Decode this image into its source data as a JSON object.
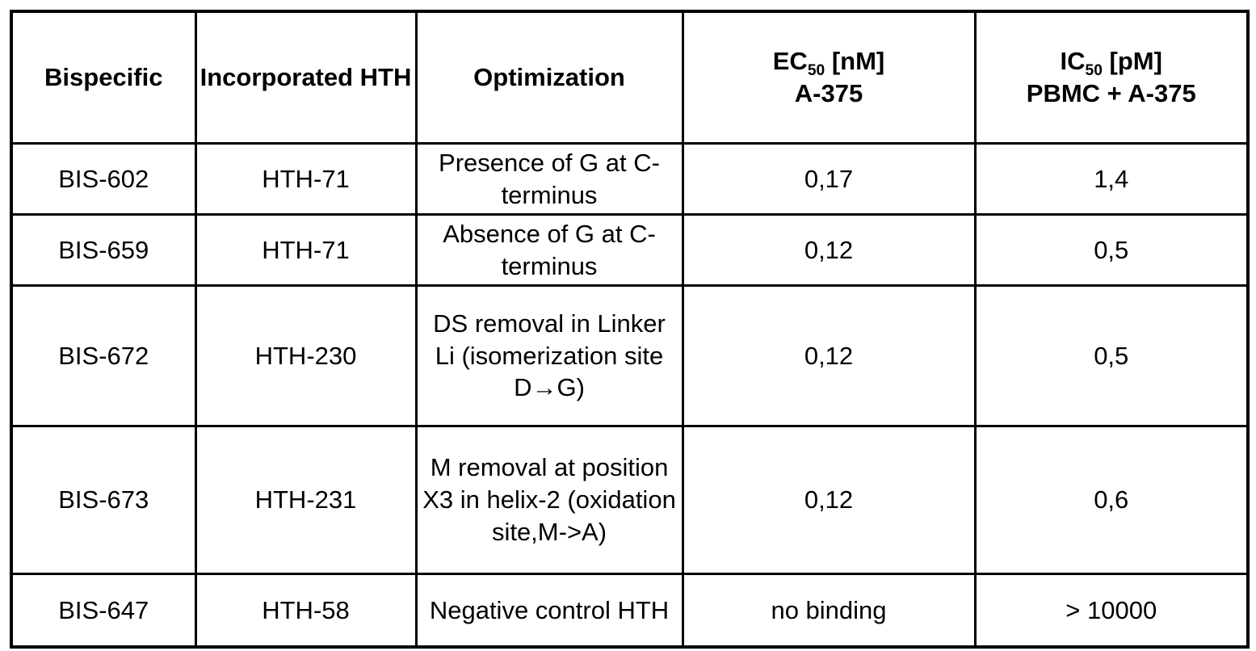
{
  "table": {
    "row_fields": [
      "bispecific",
      "hth",
      "optimization",
      "ec50",
      "ic50"
    ],
    "columns": [
      {
        "key": "bispecific",
        "label": "Bispecific"
      },
      {
        "key": "hth",
        "label": "Incorporated HTH"
      },
      {
        "key": "optimization",
        "label": "Optimization"
      },
      {
        "key": "ec50",
        "label_main": "EC",
        "label_sub": "50",
        "label_unit": " [nM]",
        "label_line2": "A-375"
      },
      {
        "key": "ic50",
        "label_main": "IC",
        "label_sub": "50",
        "label_unit": " [pM]",
        "label_line2": "PBMC + A-375"
      }
    ],
    "rows": [
      {
        "bispecific": "BIS-602",
        "hth": "HTH-71",
        "optimization": "Presence of G at C-terminus",
        "ec50": "0,17",
        "ic50": "1,4"
      },
      {
        "bispecific": "BIS-659",
        "hth": "HTH-71",
        "optimization": "Absence of G at C-terminus",
        "ec50": "0,12",
        "ic50": "0,5"
      },
      {
        "bispecific": "BIS-672",
        "hth": "HTH-230",
        "optimization": "DS removal in Linker Li (isomerization site D→G)",
        "ec50": "0,12",
        "ic50": "0,5"
      },
      {
        "bispecific": "BIS-673",
        "hth": "HTH-231",
        "optimization": "M removal at position X3 in helix-2 (oxidation site,M->A)",
        "ec50": "0,12",
        "ic50": "0,6"
      },
      {
        "bispecific": "BIS-647",
        "hth": "HTH-58",
        "optimization": "Negative control HTH",
        "ec50": "no binding",
        "ic50": "> 10000"
      }
    ]
  }
}
